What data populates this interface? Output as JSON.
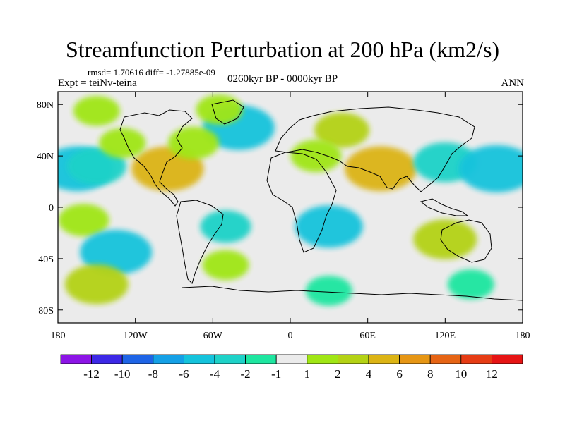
{
  "header": {
    "title": "Streamfunction Perturbation at 200 hPa (km2/s)",
    "stats": "rmsd= 1.70616  diff= -1.27885e-09",
    "experiment": "Expt = teiNv-teina",
    "period": "0260kyr BP - 0000kyr BP",
    "season": "ANN"
  },
  "map": {
    "lon_range": [
      -180,
      180
    ],
    "lat_range": [
      -90,
      90
    ],
    "x_ticks": [
      {
        "value": -180,
        "label": "180"
      },
      {
        "value": -120,
        "label": "120W"
      },
      {
        "value": -60,
        "label": "60W"
      },
      {
        "value": 0,
        "label": "0"
      },
      {
        "value": 60,
        "label": "60E"
      },
      {
        "value": 120,
        "label": "120E"
      },
      {
        "value": 180,
        "label": "180"
      }
    ],
    "y_ticks": [
      {
        "value": 80,
        "label": "80N"
      },
      {
        "value": 40,
        "label": "40N"
      },
      {
        "value": 0,
        "label": "0"
      },
      {
        "value": -40,
        "label": "40S"
      },
      {
        "value": -80,
        "label": "80S"
      }
    ],
    "background_color": "#ebebeb",
    "anomaly_features": [
      {
        "lon": -165,
        "lat": 30,
        "value": -4.5
      },
      {
        "lon": -150,
        "lat": 32,
        "value": -3
      },
      {
        "lon": -95,
        "lat": 30,
        "value": 4.5
      },
      {
        "lon": -130,
        "lat": 50,
        "value": 1.5
      },
      {
        "lon": -40,
        "lat": 62,
        "value": -4.5
      },
      {
        "lon": -55,
        "lat": 76,
        "value": 1.5
      },
      {
        "lon": -150,
        "lat": 75,
        "value": 1.5
      },
      {
        "lon": 40,
        "lat": 60,
        "value": 2.5
      },
      {
        "lon": 20,
        "lat": 40,
        "value": 2
      },
      {
        "lon": 70,
        "lat": 30,
        "value": 4.5
      },
      {
        "lon": 120,
        "lat": 35,
        "value": -3.5
      },
      {
        "lon": 160,
        "lat": 30,
        "value": -5
      },
      {
        "lon": -75,
        "lat": 50,
        "value": 2
      },
      {
        "lon": -160,
        "lat": -10,
        "value": 2
      },
      {
        "lon": -50,
        "lat": -15,
        "value": -2
      },
      {
        "lon": 30,
        "lat": -15,
        "value": -4
      },
      {
        "lon": 120,
        "lat": -25,
        "value": 3.5
      },
      {
        "lon": -135,
        "lat": -35,
        "value": -4.5
      },
      {
        "lon": -150,
        "lat": -60,
        "value": 3.5
      },
      {
        "lon": 30,
        "lat": -65,
        "value": -1.5
      },
      {
        "lon": 140,
        "lat": -60,
        "value": -1.5
      },
      {
        "lon": -50,
        "lat": -45,
        "value": 1.5
      }
    ]
  },
  "colorbar": {
    "colors": [
      "#8c14e6",
      "#3c28e6",
      "#1e64e6",
      "#14a0e6",
      "#14c3dc",
      "#1ed2c8",
      "#1ee6a0",
      "#ebebeb",
      "#a0e614",
      "#b4d214",
      "#dcb414",
      "#e69614",
      "#e66414",
      "#e63c14",
      "#e61414"
    ],
    "labels": [
      "-12",
      "-10",
      "-8",
      "-6",
      "-4",
      "-2",
      "-1",
      "1",
      "2",
      "4",
      "6",
      "8",
      "10",
      "12"
    ]
  }
}
